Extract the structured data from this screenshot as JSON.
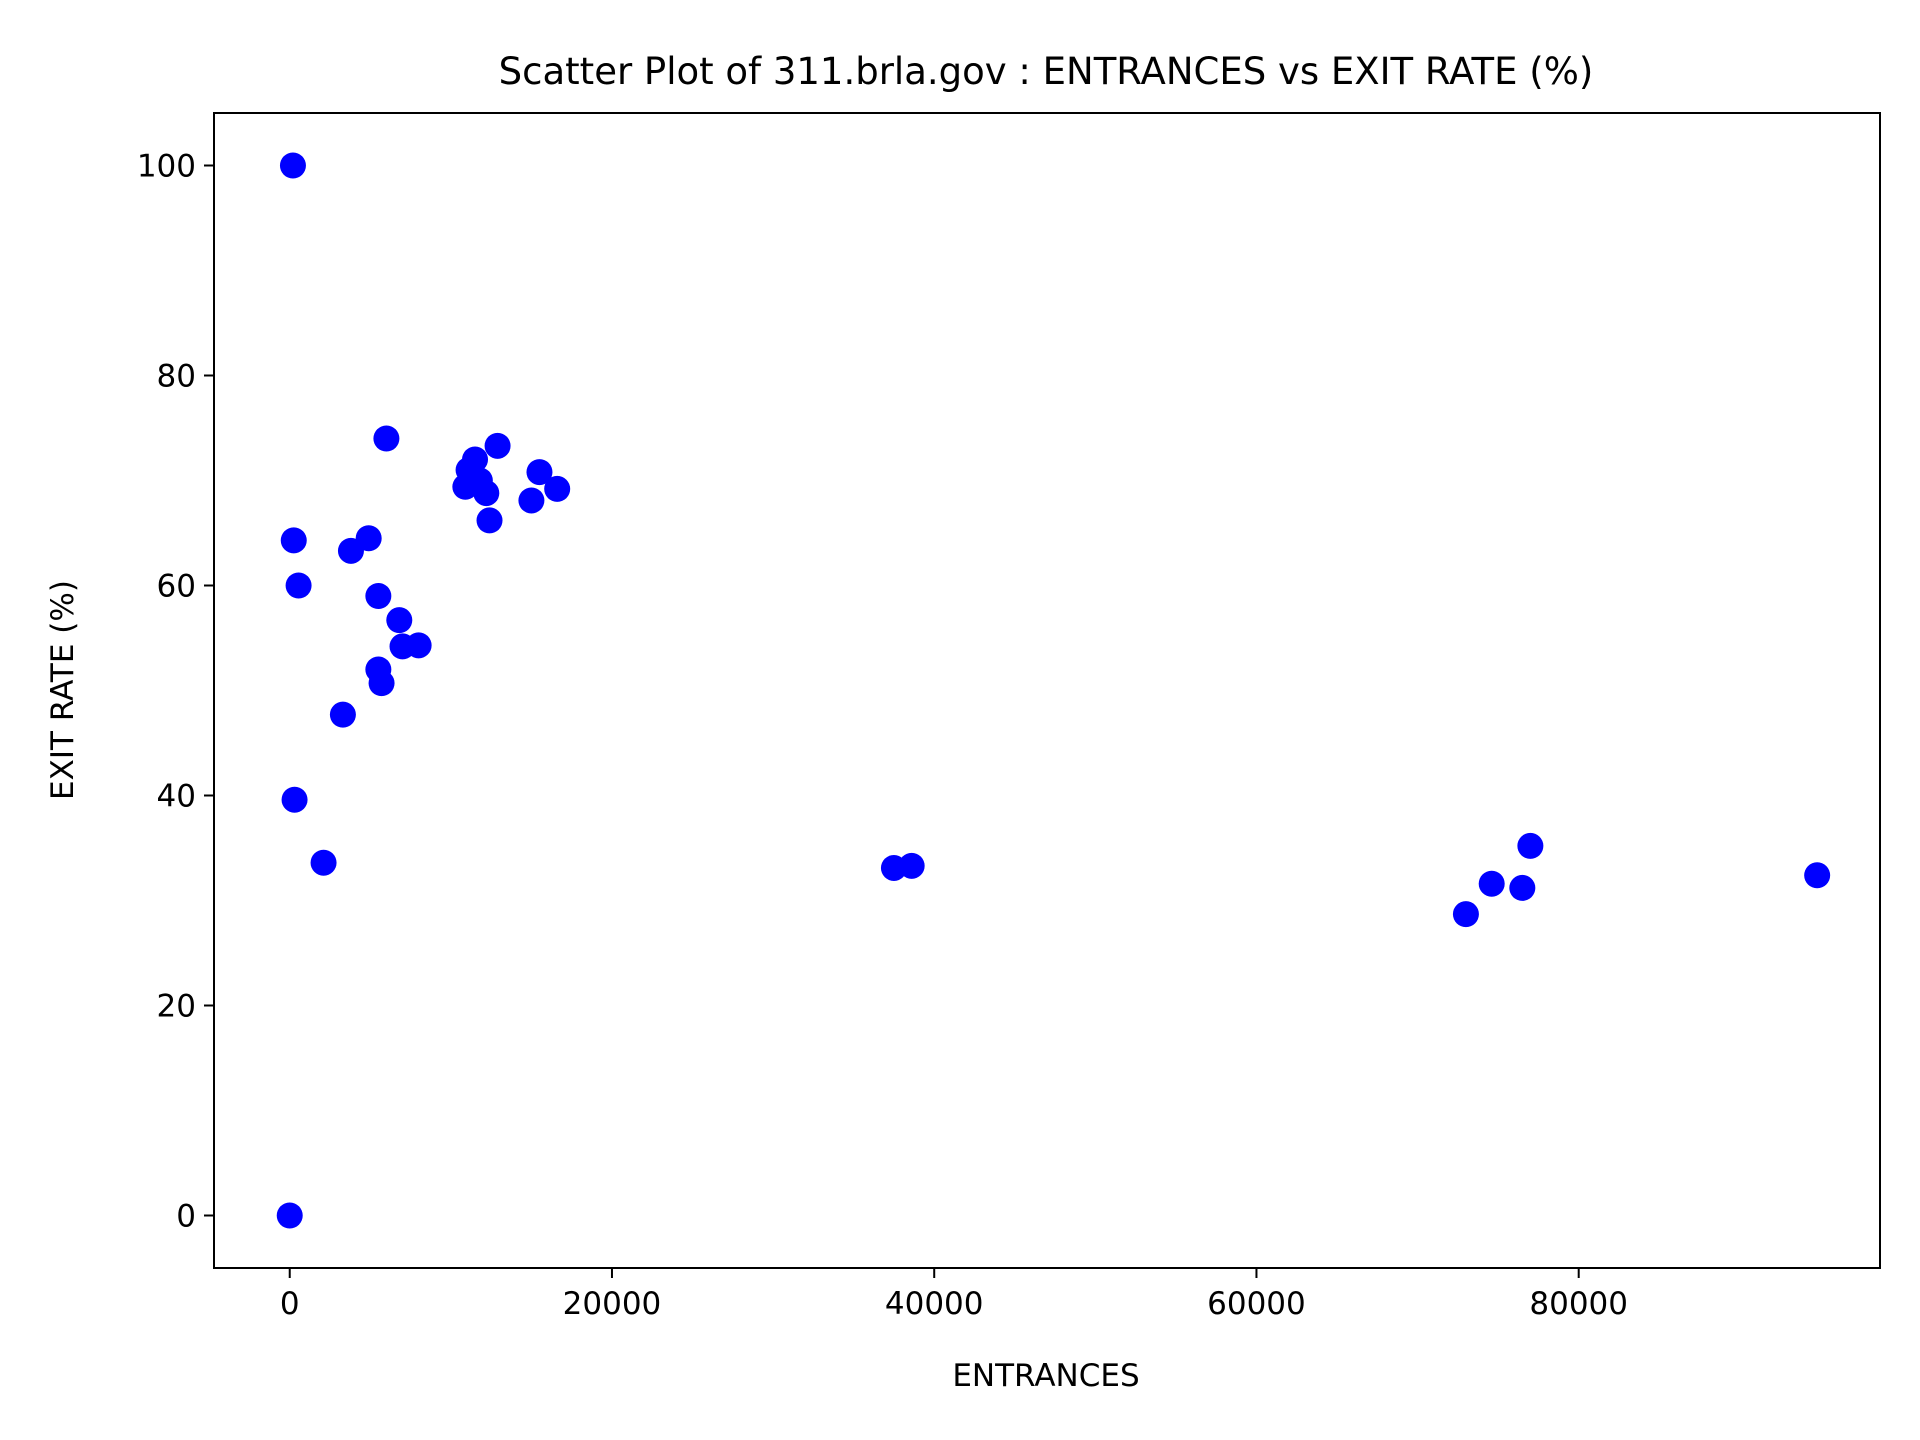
{
  "chart_data": {
    "type": "scatter",
    "title": "Scatter Plot of 311.brla.gov : ENTRANCES vs EXIT RATE (%)",
    "xlabel": "ENTRANCES",
    "ylabel": "EXIT RATE (%)",
    "xlim": [
      -4700,
      98700
    ],
    "ylim": [
      -5,
      105
    ],
    "x_ticks": [
      0,
      20000,
      40000,
      60000,
      80000
    ],
    "x_tick_labels": [
      "0",
      "20000",
      "40000",
      "60000",
      "80000"
    ],
    "y_ticks": [
      0,
      20,
      40,
      60,
      80,
      100
    ],
    "y_tick_labels": [
      "0",
      "20",
      "40",
      "60",
      "80",
      "100"
    ],
    "grid": false,
    "legend": "none",
    "marker_color": "#0000ff",
    "series": [
      {
        "points": [
          {
            "x": 0,
            "y": 0
          },
          {
            "x": 200,
            "y": 100
          },
          {
            "x": 250,
            "y": 64.3
          },
          {
            "x": 550,
            "y": 60
          },
          {
            "x": 300,
            "y": 39.6
          },
          {
            "x": 2100,
            "y": 33.6
          },
          {
            "x": 3300,
            "y": 47.7
          },
          {
            "x": 3800,
            "y": 63.3
          },
          {
            "x": 4900,
            "y": 64.5
          },
          {
            "x": 5500,
            "y": 59
          },
          {
            "x": 5500,
            "y": 52
          },
          {
            "x": 5700,
            "y": 50.7
          },
          {
            "x": 6000,
            "y": 74
          },
          {
            "x": 6800,
            "y": 56.7
          },
          {
            "x": 7000,
            "y": 54.2
          },
          {
            "x": 8000,
            "y": 54.3
          },
          {
            "x": 10900,
            "y": 69.4
          },
          {
            "x": 11100,
            "y": 71
          },
          {
            "x": 11500,
            "y": 72
          },
          {
            "x": 11800,
            "y": 70
          },
          {
            "x": 12200,
            "y": 68.8
          },
          {
            "x": 12400,
            "y": 66.2
          },
          {
            "x": 12900,
            "y": 73.3
          },
          {
            "x": 15000,
            "y": 68.1
          },
          {
            "x": 15500,
            "y": 70.8
          },
          {
            "x": 16600,
            "y": 69.2
          },
          {
            "x": 37500,
            "y": 33.1
          },
          {
            "x": 38600,
            "y": 33.3
          },
          {
            "x": 73000,
            "y": 28.7
          },
          {
            "x": 74600,
            "y": 31.6
          },
          {
            "x": 76500,
            "y": 31.2
          },
          {
            "x": 77000,
            "y": 35.2
          },
          {
            "x": 94800,
            "y": 32.4
          }
        ]
      }
    ]
  }
}
